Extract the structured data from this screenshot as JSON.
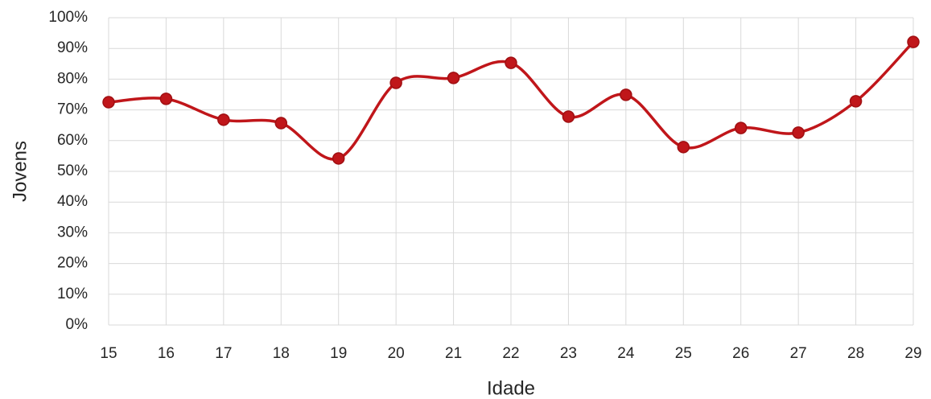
{
  "chart_data": {
    "type": "line",
    "x_label": "Idade",
    "y_label": "Jovens",
    "x": [
      15,
      16,
      17,
      18,
      19,
      20,
      21,
      22,
      23,
      24,
      25,
      26,
      27,
      28,
      29
    ],
    "series": [
      {
        "name": "Jovens",
        "color": "#c0161a",
        "values": [
          72.5,
          73.6,
          66.8,
          65.7,
          54.2,
          78.8,
          80.4,
          85.3,
          67.8,
          74.9,
          57.9,
          64.1,
          62.6,
          72.8,
          92.1
        ]
      }
    ],
    "xlim": [
      15,
      29
    ],
    "xticks": [
      15,
      16,
      17,
      18,
      19,
      20,
      21,
      22,
      23,
      24,
      25,
      26,
      27,
      28,
      29
    ],
    "ylim": [
      0,
      100
    ],
    "yticks": [
      {
        "value": 0,
        "label": "0%"
      },
      {
        "value": 10,
        "label": "10%"
      },
      {
        "value": 20,
        "label": "20%"
      },
      {
        "value": 30,
        "label": "30%"
      },
      {
        "value": 40,
        "label": "40%"
      },
      {
        "value": 50,
        "label": "50%"
      },
      {
        "value": 60,
        "label": "60%"
      },
      {
        "value": 70,
        "label": "70%"
      },
      {
        "value": 80,
        "label": "80%"
      },
      {
        "value": 90,
        "label": "90%"
      },
      {
        "value": 100,
        "label": "100%"
      }
    ],
    "grid": true
  }
}
